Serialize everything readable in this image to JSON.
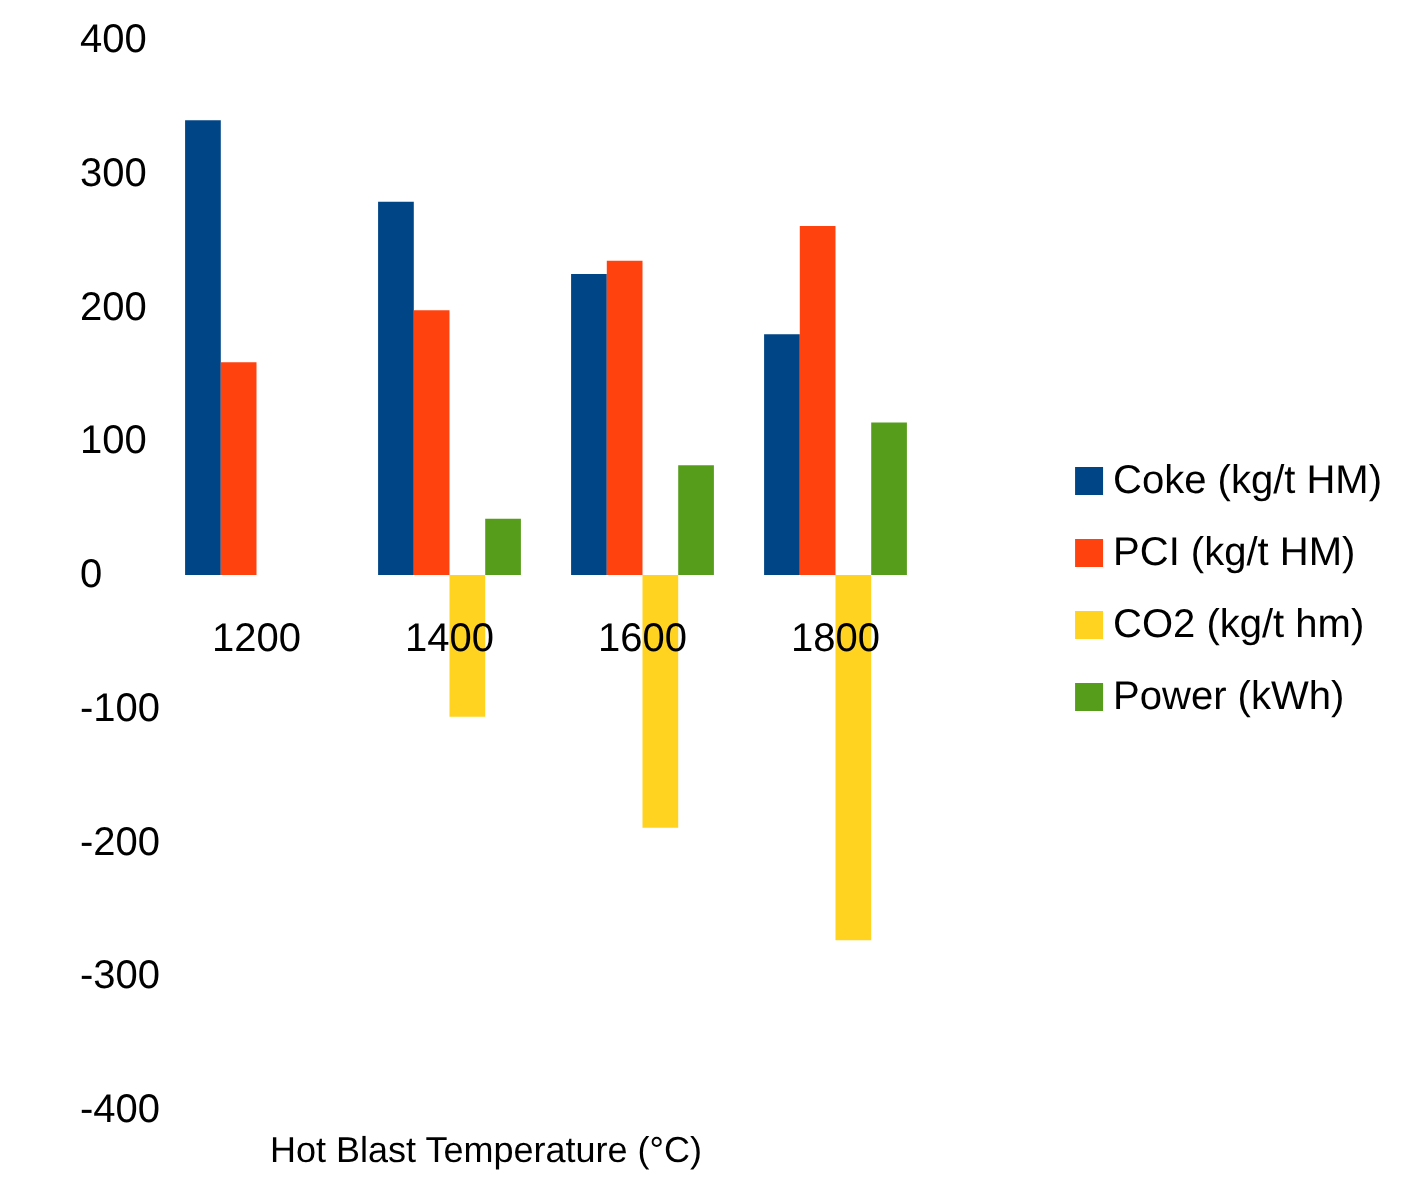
{
  "chart_data": {
    "type": "bar",
    "xlabel": "Hot Blast Temperature (°C)",
    "categories": [
      "1200",
      "1400",
      "1600",
      "1800"
    ],
    "series": [
      {
        "name": "Coke (kg/t HM)",
        "color": "#004586",
        "values": [
          340,
          279,
          225,
          180
        ]
      },
      {
        "name": "PCI (kg/t HM)",
        "color": "#ff420e",
        "values": [
          159,
          198,
          235,
          261
        ]
      },
      {
        "name": "CO2 (kg/t hm)",
        "color": "#ffd320",
        "values": [
          0,
          -106,
          -189,
          -273
        ]
      },
      {
        "name": "Power (kWh)",
        "color": "#579d1c",
        "values": [
          0,
          42,
          82,
          114
        ]
      }
    ],
    "ylim": [
      -400,
      400
    ],
    "yticks": [
      -400,
      -300,
      -200,
      -100,
      0,
      100,
      200,
      300,
      400
    ],
    "grid": false,
    "legend": "right"
  }
}
